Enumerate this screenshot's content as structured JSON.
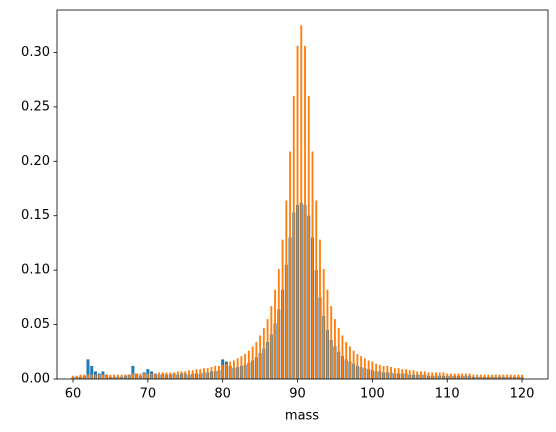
{
  "chart_data": {
    "type": "bar",
    "x_label": "mass",
    "x": [
      60,
      60.5,
      61,
      61.5,
      62,
      62.5,
      63,
      63.5,
      64,
      64.5,
      65,
      65.5,
      66,
      66.5,
      67,
      67.5,
      68,
      68.5,
      69,
      69.5,
      70,
      70.5,
      71,
      71.5,
      72,
      72.5,
      73,
      73.5,
      74,
      74.5,
      75,
      75.5,
      76,
      76.5,
      77,
      77.5,
      78,
      78.5,
      79,
      79.5,
      80,
      80.5,
      81,
      81.5,
      82,
      82.5,
      83,
      83.5,
      84,
      84.5,
      85,
      85.5,
      86,
      86.5,
      87,
      87.5,
      88,
      88.5,
      89,
      89.5,
      90,
      90.5,
      91,
      91.5,
      92,
      92.5,
      93,
      93.5,
      94,
      94.5,
      95,
      95.5,
      96,
      96.5,
      97,
      97.5,
      98,
      98.5,
      99,
      99.5,
      100,
      100.5,
      101,
      101.5,
      102,
      102.5,
      103,
      103.5,
      104,
      104.5,
      105,
      105.5,
      106,
      106.5,
      107,
      107.5,
      108,
      108.5,
      109,
      109.5,
      110,
      110.5,
      111,
      111.5,
      112,
      112.5,
      113,
      113.5,
      114,
      114.5,
      115,
      115.5,
      116,
      116.5,
      117,
      117.5,
      118,
      118.5,
      119,
      119.5,
      120
    ],
    "series": [
      {
        "color": "#1f77b4",
        "values": [
          0.002,
          0.002,
          0.002,
          0.003,
          0.018,
          0.012,
          0.007,
          0.005,
          0.007,
          0.004,
          0.002,
          0.002,
          0.002,
          0.002,
          0.003,
          0.004,
          0.012,
          0.005,
          0.003,
          0.006,
          0.009,
          0.007,
          0.005,
          0.004,
          0.005,
          0.004,
          0.004,
          0.005,
          0.004,
          0.005,
          0.005,
          0.004,
          0.005,
          0.005,
          0.005,
          0.006,
          0.006,
          0.007,
          0.007,
          0.008,
          0.018,
          0.016,
          0.012,
          0.01,
          0.011,
          0.012,
          0.013,
          0.015,
          0.017,
          0.02,
          0.024,
          0.028,
          0.034,
          0.041,
          0.051,
          0.064,
          0.082,
          0.105,
          0.13,
          0.153,
          0.16,
          0.162,
          0.16,
          0.15,
          0.13,
          0.1,
          0.075,
          0.058,
          0.045,
          0.036,
          0.03,
          0.025,
          0.021,
          0.018,
          0.016,
          0.014,
          0.012,
          0.011,
          0.01,
          0.009,
          0.008,
          0.007,
          0.007,
          0.006,
          0.006,
          0.006,
          0.005,
          0.005,
          0.005,
          0.005,
          0.004,
          0.004,
          0.004,
          0.004,
          0.004,
          0.003,
          0.003,
          0.003,
          0.003,
          0.003,
          0.003,
          0.003,
          0.003,
          0.003,
          0.003,
          0.003,
          0.003,
          0.002,
          0.002,
          0.002,
          0.002,
          0.002,
          0.002,
          0.002,
          0.002,
          0.002,
          0.002,
          0.002,
          0.002,
          0.002,
          0.002
        ]
      },
      {
        "color": "#ff7f0e",
        "values": [
          0.003,
          0.003,
          0.004,
          0.004,
          0.004,
          0.004,
          0.004,
          0.004,
          0.004,
          0.004,
          0.004,
          0.004,
          0.004,
          0.004,
          0.004,
          0.004,
          0.005,
          0.005,
          0.005,
          0.005,
          0.005,
          0.005,
          0.005,
          0.006,
          0.006,
          0.006,
          0.006,
          0.006,
          0.007,
          0.007,
          0.007,
          0.008,
          0.008,
          0.009,
          0.009,
          0.01,
          0.01,
          0.011,
          0.012,
          0.012,
          0.013,
          0.014,
          0.016,
          0.017,
          0.019,
          0.021,
          0.023,
          0.026,
          0.03,
          0.034,
          0.04,
          0.047,
          0.055,
          0.067,
          0.082,
          0.101,
          0.128,
          0.164,
          0.209,
          0.26,
          0.306,
          0.325,
          0.306,
          0.26,
          0.209,
          0.164,
          0.128,
          0.101,
          0.082,
          0.067,
          0.055,
          0.047,
          0.04,
          0.034,
          0.03,
          0.026,
          0.023,
          0.021,
          0.019,
          0.017,
          0.016,
          0.014,
          0.013,
          0.012,
          0.012,
          0.011,
          0.01,
          0.01,
          0.009,
          0.009,
          0.008,
          0.008,
          0.007,
          0.007,
          0.007,
          0.006,
          0.006,
          0.006,
          0.006,
          0.006,
          0.005,
          0.005,
          0.005,
          0.005,
          0.005,
          0.005,
          0.005,
          0.004,
          0.004,
          0.004,
          0.004,
          0.004,
          0.004,
          0.004,
          0.004,
          0.004,
          0.004,
          0.004,
          0.004,
          0.004,
          0.004
        ]
      }
    ],
    "xlim": [
      57.86,
      123.47
    ],
    "xticks": [
      60,
      70,
      80,
      90,
      100,
      110,
      120
    ],
    "ylim": [
      0,
      0.339
    ],
    "yticks": [
      {
        "value": 0,
        "label": "0.00"
      },
      0.05,
      {
        "value": 0.1,
        "label": "0.10"
      },
      0.15,
      {
        "value": 0.2,
        "label": "0.20"
      },
      0.25,
      {
        "value": 0.3,
        "label": "0.30"
      }
    ],
    "grid": false
  }
}
